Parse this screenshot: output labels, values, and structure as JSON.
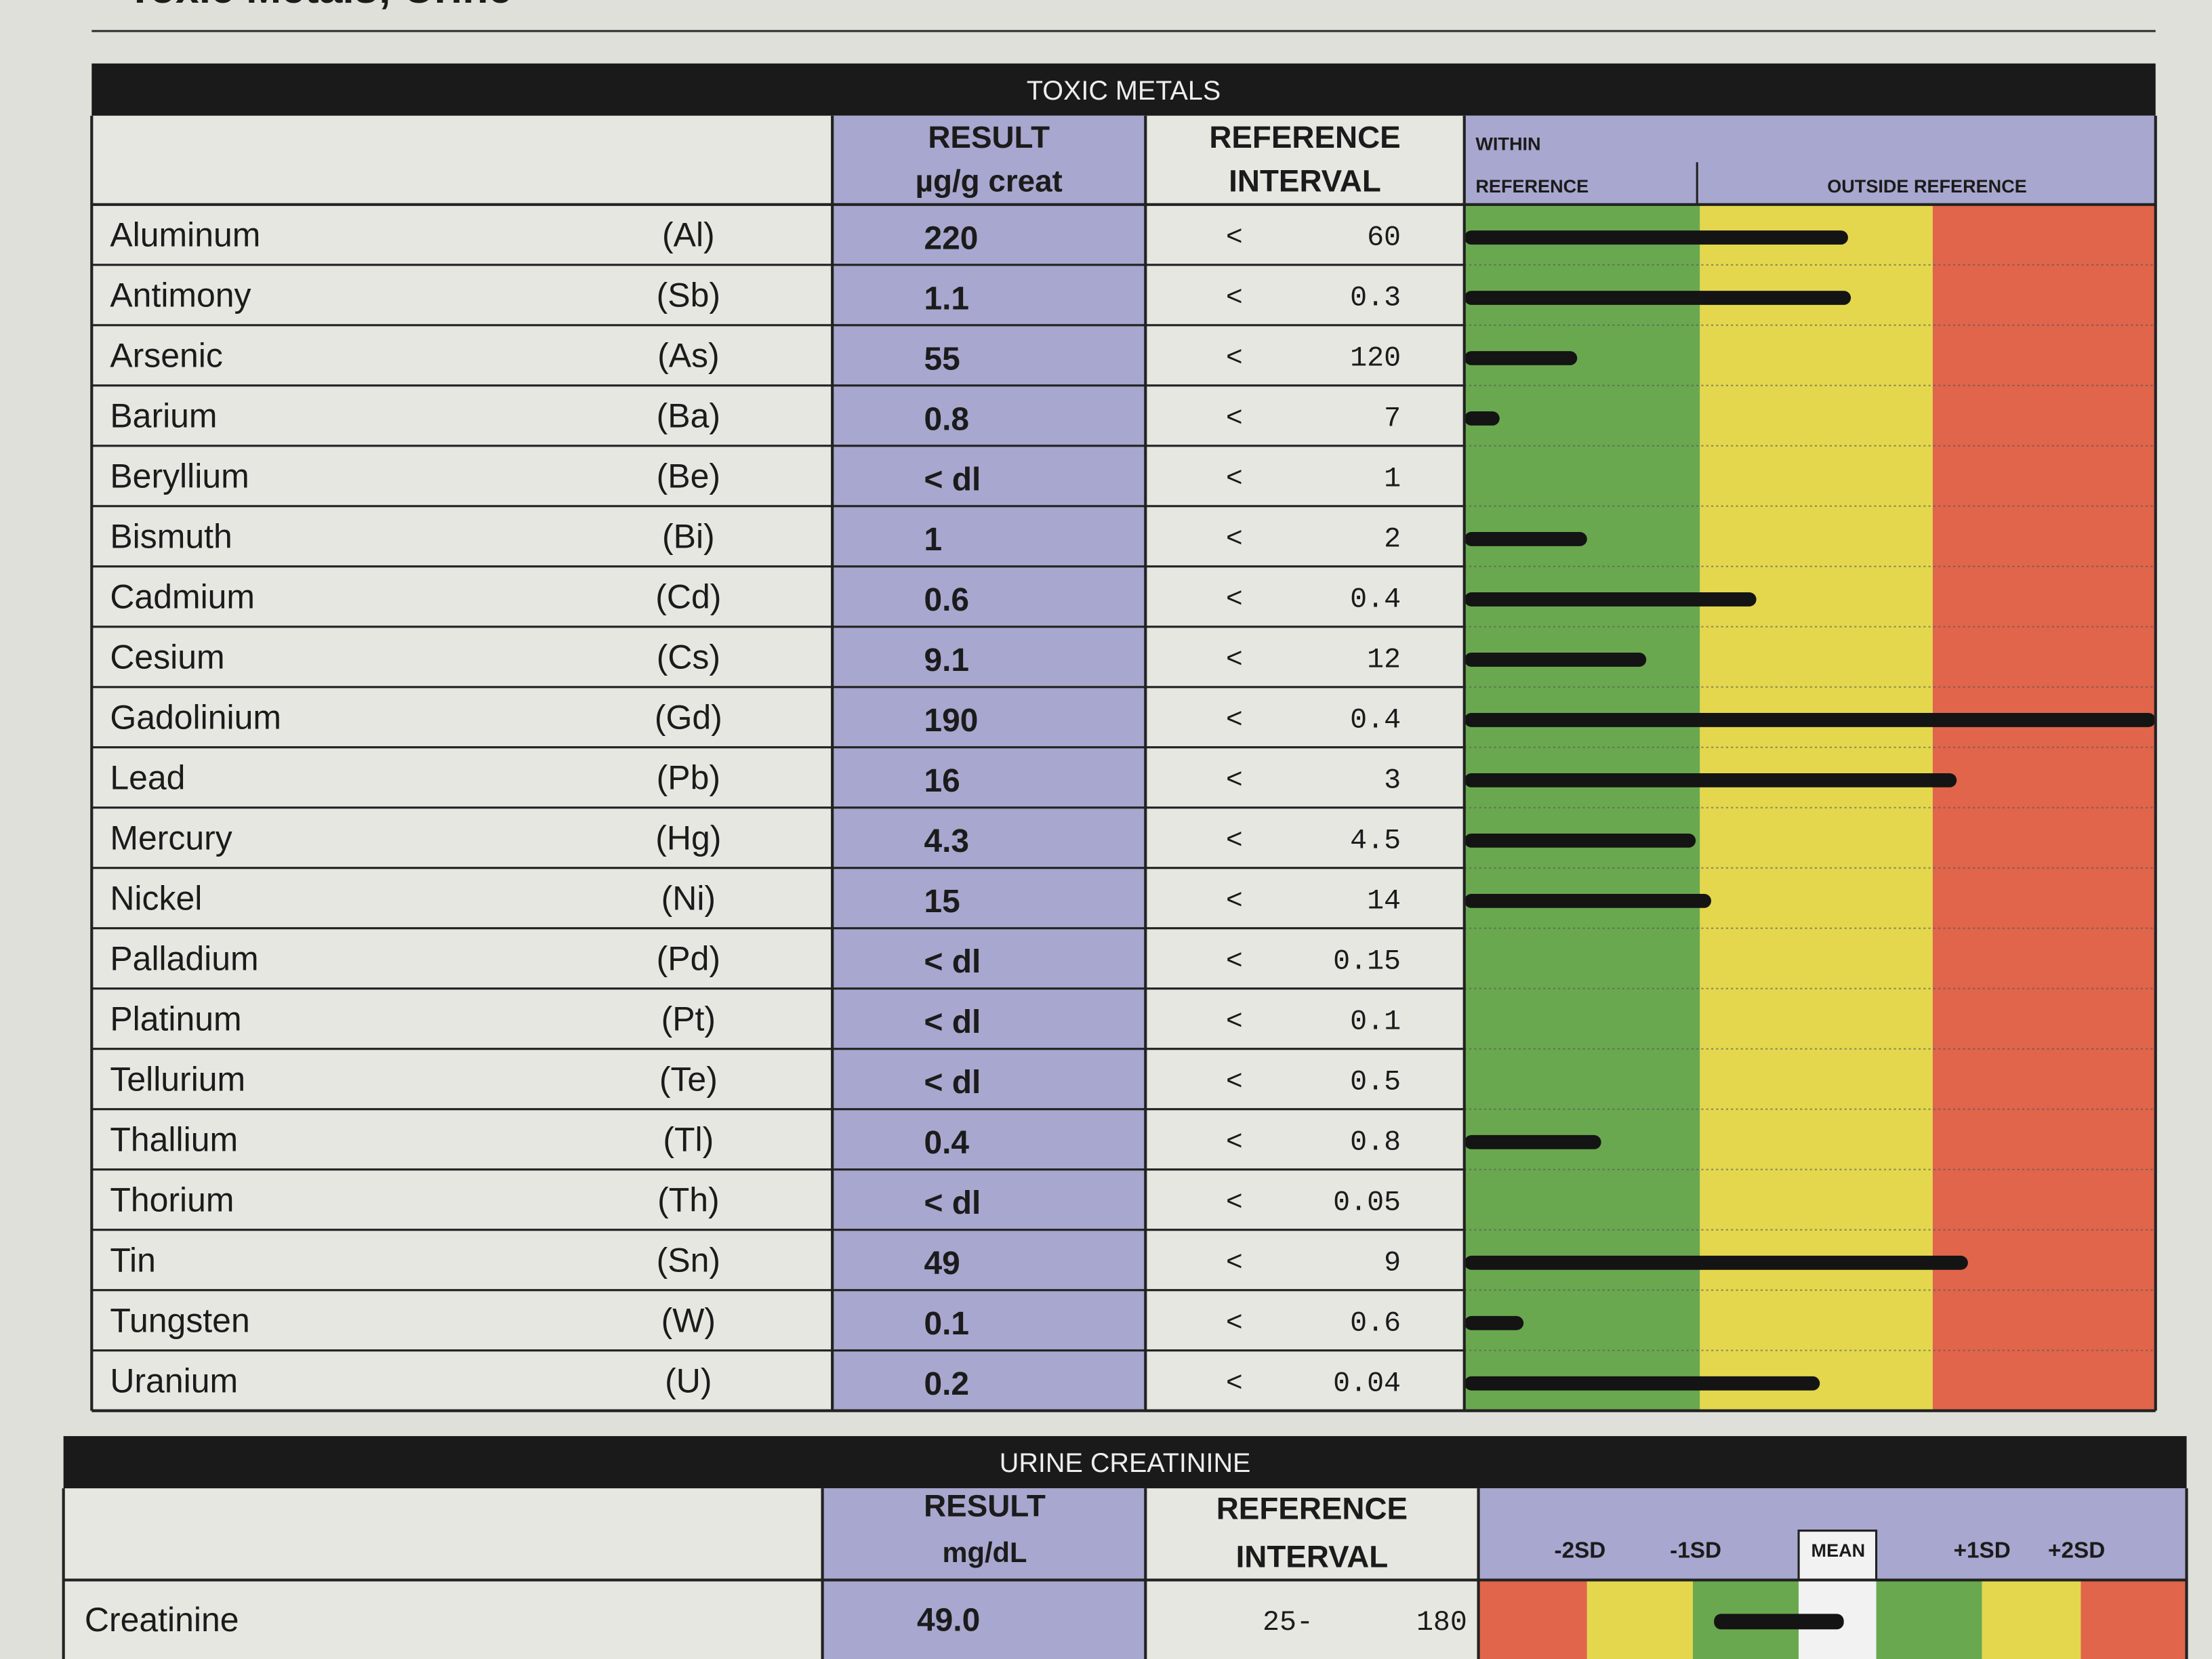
{
  "header": {
    "title": "Toxic Metals; Urine"
  },
  "toxic_metals": {
    "title": "TOXIC METALS",
    "result_header": "RESULT",
    "result_unit": "µg/g creat",
    "reference_header": [
      "REFERENCE",
      "INTERVAL"
    ],
    "within_header": [
      "WITHIN",
      "REFERENCE"
    ],
    "outside_header": "OUTSIDE REFERENCE",
    "rows": [
      {
        "name": "Aluminum",
        "symbol": "(Al)",
        "result": "220",
        "ref_op": "<",
        "ref": "60"
      },
      {
        "name": "Antimony",
        "symbol": "(Sb)",
        "result": "1.1",
        "ref_op": "<",
        "ref": "0.3"
      },
      {
        "name": "Arsenic",
        "symbol": "(As)",
        "result": "55",
        "ref_op": "<",
        "ref": "120"
      },
      {
        "name": "Barium",
        "symbol": "(Ba)",
        "result": "0.8",
        "ref_op": "<",
        "ref": "7"
      },
      {
        "name": "Beryllium",
        "symbol": "(Be)",
        "result": "< dl",
        "ref_op": "<",
        "ref": "1"
      },
      {
        "name": "Bismuth",
        "symbol": "(Bi)",
        "result": "1",
        "ref_op": "<",
        "ref": "2"
      },
      {
        "name": "Cadmium",
        "symbol": "(Cd)",
        "result": "0.6",
        "ref_op": "<",
        "ref": "0.4"
      },
      {
        "name": "Cesium",
        "symbol": "(Cs)",
        "result": "9.1",
        "ref_op": "<",
        "ref": "12"
      },
      {
        "name": "Gadolinium",
        "symbol": "(Gd)",
        "result": "190",
        "ref_op": "<",
        "ref": "0.4"
      },
      {
        "name": "Lead",
        "symbol": "(Pb)",
        "result": "16",
        "ref_op": "<",
        "ref": "3"
      },
      {
        "name": "Mercury",
        "symbol": "(Hg)",
        "result": "4.3",
        "ref_op": "<",
        "ref": "4.5"
      },
      {
        "name": "Nickel",
        "symbol": "(Ni)",
        "result": "15",
        "ref_op": "<",
        "ref": "14"
      },
      {
        "name": "Palladium",
        "symbol": "(Pd)",
        "result": "< dl",
        "ref_op": "<",
        "ref": "0.15"
      },
      {
        "name": "Platinum",
        "symbol": "(Pt)",
        "result": "< dl",
        "ref_op": "<",
        "ref": "0.1"
      },
      {
        "name": "Tellurium",
        "symbol": "(Te)",
        "result": "< dl",
        "ref_op": "<",
        "ref": "0.5"
      },
      {
        "name": "Thallium",
        "symbol": "(Tl)",
        "result": "0.4",
        "ref_op": "<",
        "ref": "0.8"
      },
      {
        "name": "Thorium",
        "symbol": "(Th)",
        "result": "< dl",
        "ref_op": "<",
        "ref": "0.05"
      },
      {
        "name": "Tin",
        "symbol": "(Sn)",
        "result": "49",
        "ref_op": "<",
        "ref": "9"
      },
      {
        "name": "Tungsten",
        "symbol": "(W)",
        "result": "0.1",
        "ref_op": "<",
        "ref": "0.6"
      },
      {
        "name": "Uranium",
        "symbol": "(U)",
        "result": "0.2",
        "ref_op": "<",
        "ref": "0.04"
      }
    ]
  },
  "urine_creatinine": {
    "title": "URINE CREATININE",
    "result_header": "RESULT",
    "result_unit": "mg/dL",
    "reference_header": [
      "REFERENCE",
      "INTERVAL"
    ],
    "scale_labels": [
      "-2SD",
      "-1SD",
      "MEAN",
      "+1SD",
      "+2SD"
    ],
    "rows": [
      {
        "name": "Creatinine",
        "result": "49.0",
        "ref_low": "25-",
        "ref_high": "180"
      }
    ]
  }
}
